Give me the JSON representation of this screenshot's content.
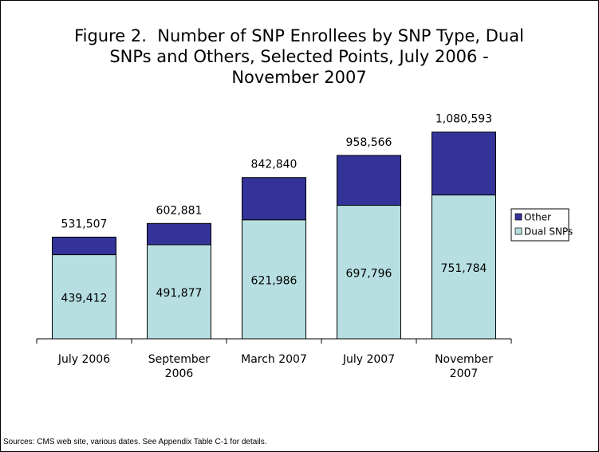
{
  "chart_data": {
    "type": "stacked_bar",
    "title": "Figure 2.  Number of SNP Enrollees by SNP Type, Dual SNPs and Others, Selected Points, July 2006 - November 2007",
    "categories": [
      "July 2006",
      "September 2006",
      "March 2007",
      "July 2007",
      "November 2007"
    ],
    "series": [
      {
        "name": "Dual SNPs",
        "color": "#b7dfe2",
        "values": [
          439412,
          491877,
          621986,
          697796,
          751784
        ],
        "value_labels": [
          "439,412",
          "491,877",
          "621,986",
          "697,796",
          "751,784"
        ]
      },
      {
        "name": "Other",
        "color": "#333399",
        "values": [
          92095,
          111004,
          220854,
          260770,
          328809
        ]
      }
    ],
    "totals": [
      531507,
      602881,
      842840,
      958566,
      1080593
    ],
    "total_labels": [
      "531,507",
      "602,881",
      "842,840",
      "958,566",
      "1,080,593"
    ],
    "ylim": [
      0,
      1200000
    ],
    "legend": "right",
    "source": "Sources: CMS web site, various dates.  See Appendix Table C-1 for details."
  }
}
